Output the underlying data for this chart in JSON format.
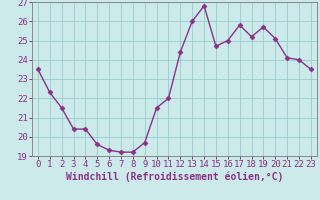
{
  "x": [
    0,
    1,
    2,
    3,
    4,
    5,
    6,
    7,
    8,
    9,
    10,
    11,
    12,
    13,
    14,
    15,
    16,
    17,
    18,
    19,
    20,
    21,
    22,
    23
  ],
  "y": [
    23.5,
    22.3,
    21.5,
    20.4,
    20.4,
    19.6,
    19.3,
    19.2,
    19.2,
    19.7,
    21.5,
    22.0,
    24.4,
    26.0,
    26.8,
    24.7,
    25.0,
    25.8,
    25.2,
    25.7,
    25.1,
    24.1,
    24.0,
    23.5
  ],
  "line_color": "#883388",
  "marker": "D",
  "marker_size": 2.5,
  "bg_color": "#cceaea",
  "plot_bg_color": "#cceaea",
  "grid_color": "#99cccc",
  "xlabel": "Windchill (Refroidissement éolien,°C)",
  "ylabel": "",
  "title": "",
  "ylim": [
    19,
    27
  ],
  "xlim": [
    -0.5,
    23.5
  ],
  "yticks": [
    19,
    20,
    21,
    22,
    23,
    24,
    25,
    26,
    27
  ],
  "xticks": [
    0,
    1,
    2,
    3,
    4,
    5,
    6,
    7,
    8,
    9,
    10,
    11,
    12,
    13,
    14,
    15,
    16,
    17,
    18,
    19,
    20,
    21,
    22,
    23
  ],
  "tick_label_color": "#883388",
  "axis_color": "#888888",
  "xlabel_fontsize": 7,
  "tick_fontsize": 6.5,
  "line_width": 1.0
}
